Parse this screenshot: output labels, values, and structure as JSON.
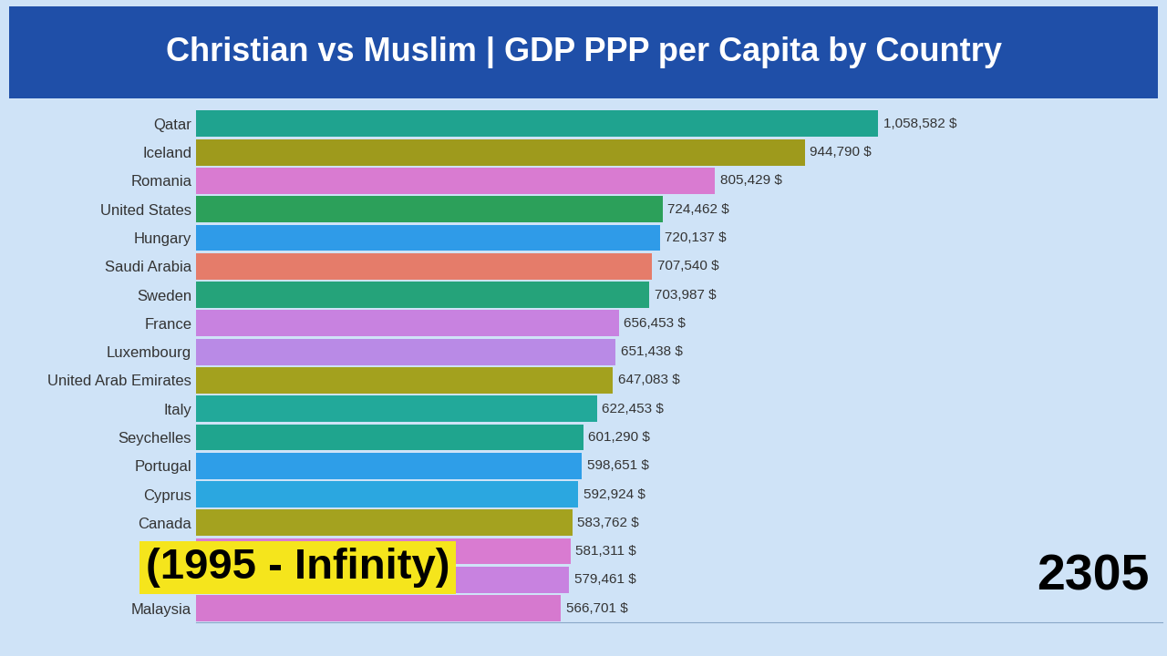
{
  "chart_data": {
    "type": "bar",
    "orientation": "horizontal",
    "title": "Christian vs Muslim | GDP PPP per Capita by Country",
    "subtitle": "(1995 - Infinity)",
    "annotations": [
      "2305"
    ],
    "categories": [
      "Qatar",
      "Iceland",
      "Romania",
      "United States",
      "Hungary",
      "Saudi Arabia",
      "Sweden",
      "France",
      "Luxembourg",
      "United Arab Emirates",
      "Italy",
      "Seychelles",
      "Portugal",
      "Cyprus",
      "Canada",
      null,
      null,
      "Malaysia"
    ],
    "values": [
      1058582,
      944790,
      805429,
      724462,
      720137,
      707540,
      703987,
      656453,
      651438,
      647083,
      622453,
      601290,
      598651,
      592924,
      583762,
      581311,
      579461,
      566701
    ],
    "value_labels": [
      "1,058,582 $",
      "944,790 $",
      "805,429 $",
      "724,462 $",
      "720,137 $",
      "707,540 $",
      "703,987 $",
      "656,453 $",
      "651,438 $",
      "647,083 $",
      "622,453 $",
      "601,290 $",
      "598,651 $",
      "592,924 $",
      "583,762 $",
      "581,311 $",
      "579,461 $",
      "566,701 $"
    ],
    "colors": [
      "#1fa38f",
      "#9e9a1c",
      "#d97bd1",
      "#2ca05a",
      "#2f9be8",
      "#e57c6a",
      "#25a37a",
      "#c882e0",
      "#b98ae6",
      "#a3a11e",
      "#22a99a",
      "#1fa58e",
      "#2e9ee8",
      "#2ba7e0",
      "#a4a21f",
      "#d97bd1",
      "#c882e0",
      "#d679cf"
    ],
    "xlim": [
      0,
      1500000
    ],
    "xticks": [],
    "data_labels": true,
    "tick_labels": "y",
    "grid": false
  }
}
